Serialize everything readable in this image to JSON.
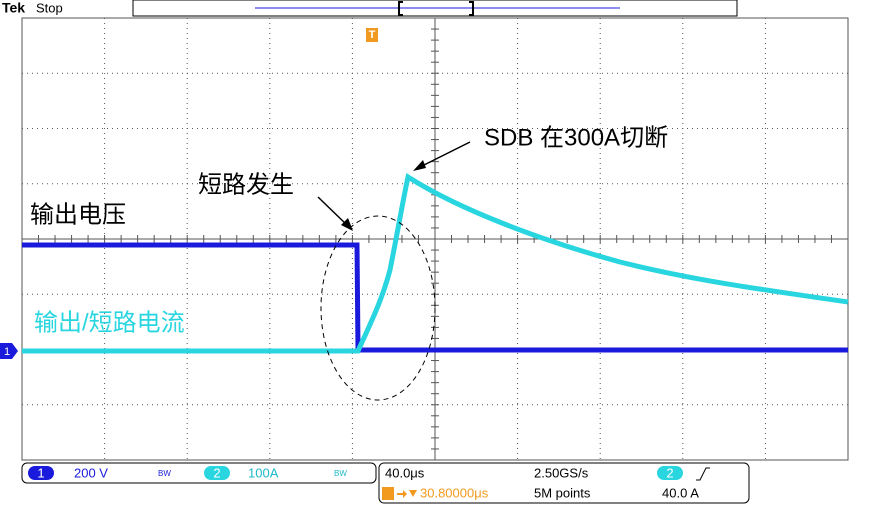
{
  "header": {
    "brand": "Tek",
    "status": "Stop",
    "trigger_marker": "T"
  },
  "annotations": {
    "sdb": "SDB 在300A切断",
    "short": "短路发生",
    "voltage": "输出电压",
    "current": "输出/短路电流"
  },
  "channel_marker": "1",
  "status_bar": {
    "ch1": {
      "number": "1",
      "scale": "200 V",
      "bw": "BW"
    },
    "ch2": {
      "number": "2",
      "scale": "100A",
      "bw": "BW"
    },
    "timebase": "40.0μs",
    "sample_rate": "2.50GS/s",
    "trigger_position": "30.80000μs",
    "record_length": "5M points",
    "trigger_source": "2",
    "trigger_level": "40.0 A"
  }
}
